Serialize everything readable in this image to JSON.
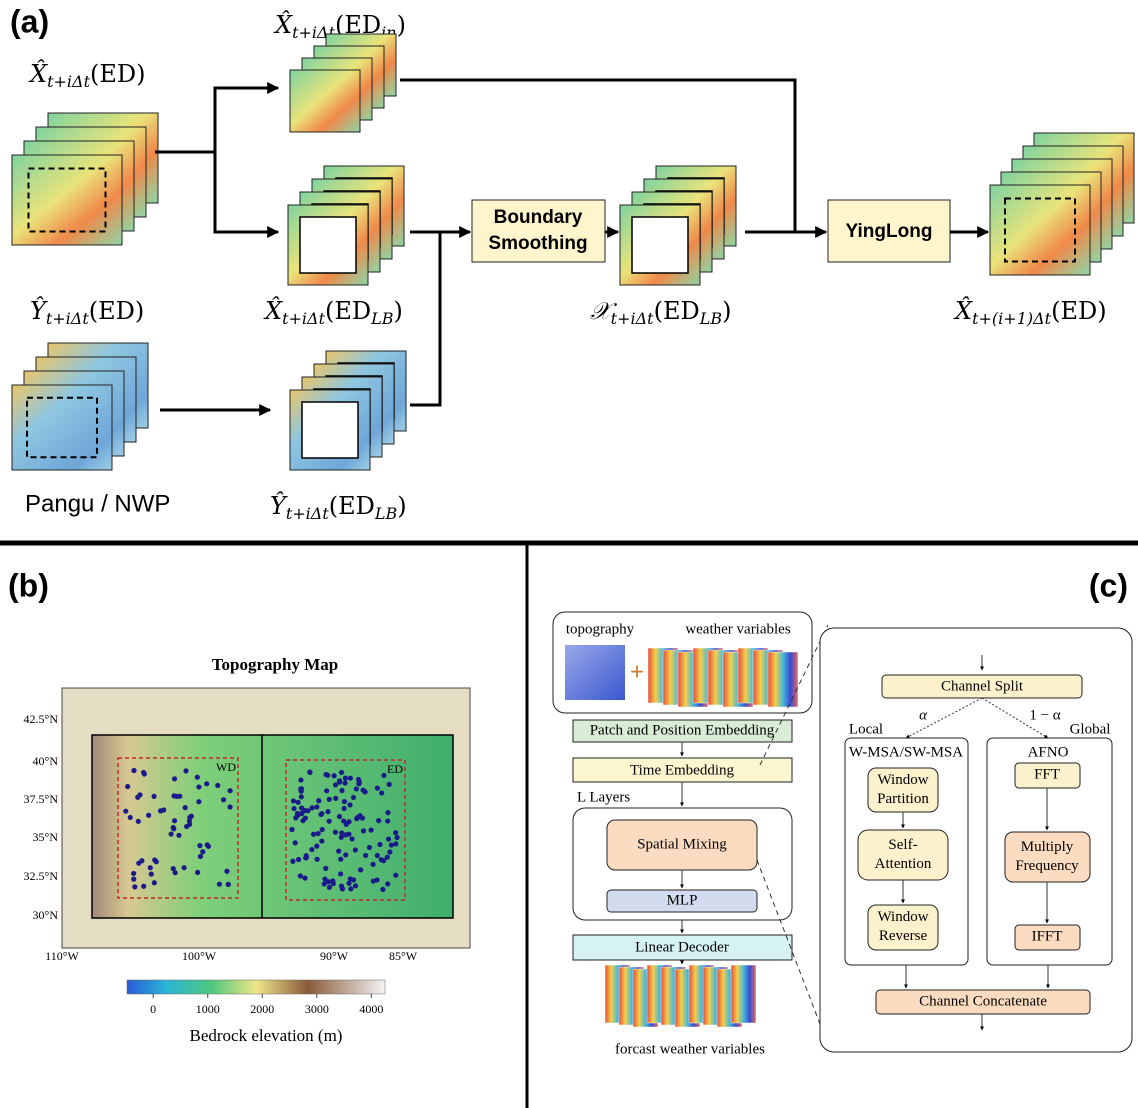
{
  "panel_a": {
    "label": "(a)",
    "x_ed": [
      {
        "text": "X̂"
      },
      {
        "text": "t+iΔt",
        "sub": true
      },
      {
        "text": "(ED)"
      }
    ],
    "x_ed_in": [
      {
        "text": "X̂"
      },
      {
        "text": "t+iΔt",
        "sub": true
      },
      {
        "text": "(ED"
      },
      {
        "text": "in",
        "sub": true
      },
      {
        "text": ")"
      }
    ],
    "x_ed_lb": [
      {
        "text": "X̂"
      },
      {
        "text": "t+iΔt",
        "sub": true
      },
      {
        "text": "(ED"
      },
      {
        "text": "LB",
        "sub": true
      },
      {
        "text": ")"
      }
    ],
    "y_ed": [
      {
        "text": "Ŷ"
      },
      {
        "text": "t+iΔt",
        "sub": true
      },
      {
        "text": "(ED)"
      }
    ],
    "y_ed_lb": [
      {
        "text": "Ŷ"
      },
      {
        "text": "t+iΔt",
        "sub": true
      },
      {
        "text": "(ED"
      },
      {
        "text": "LB",
        "sub": true
      },
      {
        "text": ")"
      }
    ],
    "chi_ed_lb": [
      {
        "text": "𝒳"
      },
      {
        "text": "t+iΔt",
        "sub": true
      },
      {
        "text": "(ED"
      },
      {
        "text": "LB",
        "sub": true
      },
      {
        "text": ")"
      }
    ],
    "x_next": [
      {
        "text": "X̂"
      },
      {
        "text": "t+(i+1)Δt",
        "sub": true
      },
      {
        "text": "(ED)"
      }
    ],
    "pangu": "Pangu / NWP",
    "boundary_smoothing": [
      "Boundary",
      "Smoothing"
    ],
    "yinglong": "YingLong"
  },
  "panel_b": {
    "label": "(b)",
    "title": "Topography Map",
    "lat_ticks": [
      "42.5°N",
      "40°N",
      "37.5°N",
      "35°N",
      "32.5°N",
      "30°N"
    ],
    "lon_ticks": [
      "110°W",
      "100°W",
      "90°W",
      "85°W"
    ],
    "regions": [
      "WD",
      "ED"
    ],
    "colorbar": {
      "label": "Bedrock elevation (m)",
      "lim": [
        -480,
        4250
      ],
      "ticks": [
        0,
        1000,
        2000,
        3000,
        4000
      ]
    }
  },
  "panel_c": {
    "label": "(c)",
    "topography": "topography",
    "weather_variables": "weather variables",
    "patch_embedding": "Patch and Position Embedding",
    "time_embedding": "Time Embedding",
    "l_layers": "L Layers",
    "spatial_mixing": "Spatial Mixing",
    "mlp": "MLP",
    "linear_decoder": "Linear Decoder",
    "forecast": "forcast weather variables",
    "channel_split": "Channel Split",
    "alpha": "α",
    "one_minus_alpha": "1 − α",
    "local": "Local",
    "global": "Global",
    "local_branch": "W-MSA/SW-MSA",
    "global_branch": "AFNO",
    "window_partition": [
      "Window",
      "Partition"
    ],
    "self_attention": [
      "Self-",
      "Attention"
    ],
    "window_reverse": [
      "Window",
      "Reverse"
    ],
    "fft": "FFT",
    "multiply_frequency": [
      "Multiply",
      "Frequency"
    ],
    "ifft": "IFFT",
    "channel_concatenate": "Channel Concatenate"
  }
}
